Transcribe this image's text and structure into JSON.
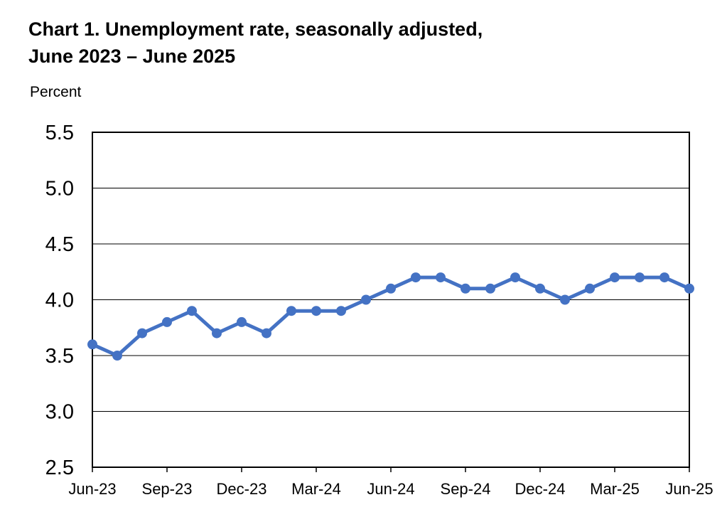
{
  "chart_data": {
    "type": "line",
    "title": "Chart 1. Unemployment rate, seasonally adjusted,",
    "subtitle": "June 2023 – June 2025",
    "ylabel": "Percent",
    "xlabel": "",
    "ylim": [
      2.5,
      5.5
    ],
    "yticks": [
      "2.5",
      "3.0",
      "3.5",
      "4.0",
      "4.5",
      "5.0",
      "5.5"
    ],
    "ytick_values": [
      2.5,
      3.0,
      3.5,
      4.0,
      4.5,
      5.0,
      5.5
    ],
    "x": [
      "Jun-23",
      "Jul-23",
      "Aug-23",
      "Sep-23",
      "Oct-23",
      "Nov-23",
      "Dec-23",
      "Jan-24",
      "Feb-24",
      "Mar-24",
      "Apr-24",
      "May-24",
      "Jun-24",
      "Jul-24",
      "Aug-24",
      "Sep-24",
      "Oct-24",
      "Nov-24",
      "Dec-24",
      "Jan-25",
      "Feb-25",
      "Mar-25",
      "Apr-25",
      "May-25",
      "Jun-25"
    ],
    "xtick_labels": [
      "Jun-23",
      "Sep-23",
      "Dec-23",
      "Mar-24",
      "Jun-24",
      "Sep-24",
      "Dec-24",
      "Mar-25",
      "Jun-25"
    ],
    "series": [
      {
        "color": "#4472C4",
        "values": [
          3.6,
          3.5,
          3.7,
          3.8,
          3.9,
          3.7,
          3.8,
          3.7,
          3.9,
          3.9,
          3.9,
          4.0,
          4.1,
          4.2,
          4.2,
          4.1,
          4.1,
          4.2,
          4.1,
          4.0,
          4.1,
          4.2,
          4.2,
          4.2,
          4.1
        ]
      }
    ],
    "grid": true,
    "legend": "none"
  }
}
